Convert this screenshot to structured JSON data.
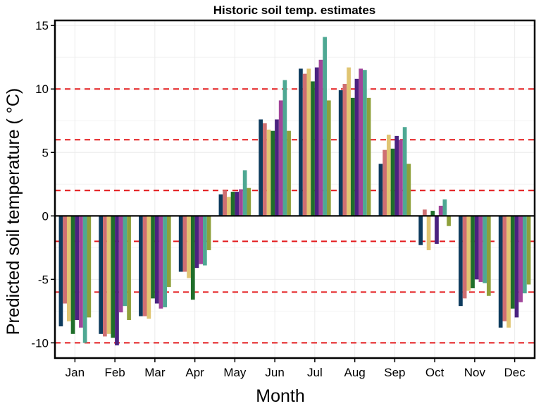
{
  "chart_data": {
    "type": "bar",
    "title": "Historic soil temp. estimates",
    "xlabel": "Month",
    "ylabel": "Predicted soil temperature ( °C)",
    "categories": [
      "Jan",
      "Feb",
      "Mar",
      "Apr",
      "May",
      "Jun",
      "Jul",
      "Aug",
      "Sep",
      "Oct",
      "Nov",
      "Dec"
    ],
    "ylim": [
      -11.2,
      15.4
    ],
    "yticks": [
      -10,
      -5,
      0,
      5,
      10,
      15
    ],
    "ytick_labels": [
      "-10",
      "-5",
      "0",
      "5",
      "10",
      "15"
    ],
    "grid": true,
    "legend": "none",
    "reference_lines": [
      -10,
      -6,
      -2,
      2,
      6,
      10
    ],
    "reference_line_color": "#e31a1c",
    "zero_line_color": "#000000",
    "series": [
      {
        "color": "#0d3b5e",
        "values": [
          -8.7,
          -9.3,
          -7.9,
          -4.4,
          1.7,
          7.6,
          11.6,
          9.9,
          4.1,
          -2.3,
          -7.1,
          -8.8
        ]
      },
      {
        "color": "#cf6f72",
        "values": [
          -6.9,
          -9.5,
          -7.9,
          -4.4,
          2.0,
          7.3,
          11.2,
          10.4,
          5.2,
          0.5,
          -6.5,
          -8.3
        ]
      },
      {
        "color": "#e0c572",
        "values": [
          -8.3,
          -9.3,
          -8.1,
          -4.9,
          1.5,
          6.8,
          11.6,
          11.7,
          6.4,
          -2.7,
          -5.9,
          -8.8
        ]
      },
      {
        "color": "#1f6e2a",
        "values": [
          -9.3,
          -9.6,
          -6.5,
          -6.6,
          1.9,
          6.7,
          10.6,
          9.3,
          5.3,
          0.4,
          -5.7,
          -7.3
        ]
      },
      {
        "color": "#4a2280",
        "values": [
          -8.2,
          -10.2,
          -6.9,
          -4.1,
          1.9,
          7.6,
          11.7,
          10.8,
          6.3,
          -2.2,
          -5.0,
          -8.0
        ]
      },
      {
        "color": "#a1459a",
        "values": [
          -8.8,
          -7.6,
          -7.3,
          -3.8,
          2.1,
          9.1,
          12.3,
          11.6,
          6.0,
          0.8,
          -5.2,
          -6.8
        ]
      },
      {
        "color": "#4ea893",
        "values": [
          -10.0,
          -7.1,
          -7.2,
          -3.9,
          3.6,
          10.7,
          14.1,
          11.5,
          7.0,
          1.3,
          -5.3,
          -6.1
        ]
      },
      {
        "color": "#8ea03a",
        "values": [
          -8.0,
          -8.2,
          -5.6,
          -2.7,
          2.2,
          6.7,
          9.1,
          9.3,
          4.1,
          -0.8,
          -6.3,
          -5.4
        ]
      }
    ]
  }
}
